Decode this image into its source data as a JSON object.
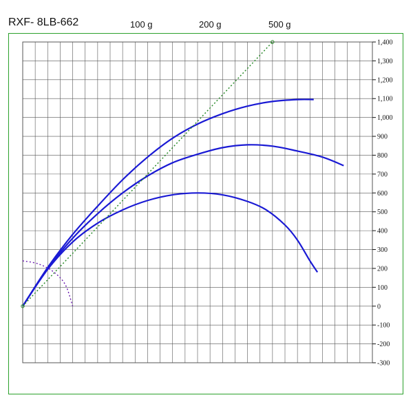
{
  "header": {
    "title": "RXF- 8LB-662",
    "legend_labels": [
      "100 g",
      "200 g",
      "500 g"
    ]
  },
  "colors": {
    "frame": "#2aa02a",
    "curve": "#1a1ad4",
    "reference_line": "#2a8a2a",
    "arc": "#6a1ab0",
    "grid": "#555555"
  },
  "chart_data": {
    "type": "line",
    "title": "RXF- 8LB-662",
    "x": [
      0,
      1,
      2,
      3,
      4,
      5,
      6,
      7,
      8,
      9,
      10,
      11,
      12,
      13,
      14,
      15,
      16,
      17,
      18,
      19,
      20,
      21,
      22,
      23,
      24,
      25,
      26,
      27,
      28
    ],
    "xlim": [
      0,
      28
    ],
    "ylim": [
      -300,
      1400
    ],
    "yticks": [
      1400,
      1300,
      1200,
      1100,
      1000,
      900,
      800,
      700,
      600,
      500,
      400,
      300,
      200,
      100,
      0,
      -100,
      -200,
      -300
    ],
    "ytick_labels": [
      "1,400",
      "1,300",
      "1,200",
      "1,100",
      "1,000",
      "900",
      "800",
      "700",
      "600",
      "500",
      "400",
      "300",
      "200",
      "100",
      "0",
      "-100",
      "-200",
      "-300"
    ],
    "grid": true,
    "series": [
      {
        "name": "100 g",
        "style": "solid",
        "points": [
          [
            0,
            0
          ],
          [
            2,
            195
          ],
          [
            4,
            340
          ],
          [
            6,
            440
          ],
          [
            8,
            510
          ],
          [
            10,
            560
          ],
          [
            12,
            590
          ],
          [
            14,
            600
          ],
          [
            16,
            590
          ],
          [
            18,
            555
          ],
          [
            19.5,
            510
          ],
          [
            21,
            430
          ],
          [
            22,
            350
          ],
          [
            23,
            240
          ],
          [
            23.6,
            180
          ]
        ]
      },
      {
        "name": "200 g",
        "style": "solid",
        "points": [
          [
            0,
            0
          ],
          [
            2,
            200
          ],
          [
            4,
            360
          ],
          [
            6,
            490
          ],
          [
            8,
            600
          ],
          [
            10,
            690
          ],
          [
            12,
            760
          ],
          [
            14,
            805
          ],
          [
            16,
            840
          ],
          [
            18,
            855
          ],
          [
            20,
            848
          ],
          [
            22,
            822
          ],
          [
            24,
            790
          ],
          [
            25.7,
            745
          ]
        ]
      },
      {
        "name": "500 g",
        "style": "solid",
        "points": [
          [
            0,
            0
          ],
          [
            2,
            205
          ],
          [
            4,
            380
          ],
          [
            6,
            530
          ],
          [
            8,
            670
          ],
          [
            10,
            790
          ],
          [
            12,
            890
          ],
          [
            14,
            965
          ],
          [
            16,
            1020
          ],
          [
            18,
            1060
          ],
          [
            20,
            1085
          ],
          [
            22,
            1095
          ],
          [
            23.3,
            1095
          ]
        ]
      },
      {
        "name": "",
        "style": "dotted-line",
        "points": [
          [
            0,
            0
          ],
          [
            20,
            1400
          ]
        ]
      },
      {
        "name": "",
        "style": "dotted-arc",
        "points": [
          [
            0,
            240
          ],
          [
            1.2,
            225
          ],
          [
            2.4,
            185
          ],
          [
            3.4,
            115
          ],
          [
            4.0,
            0
          ]
        ]
      }
    ]
  }
}
